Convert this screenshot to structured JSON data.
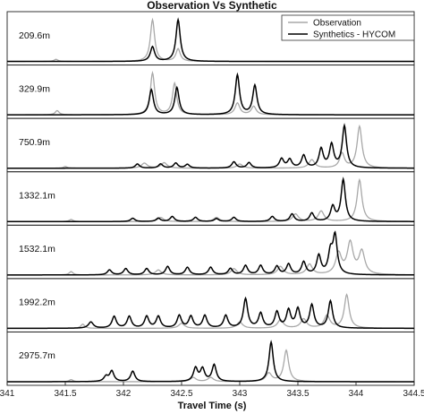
{
  "chart_data": {
    "type": "line",
    "title": "Observation Vs Synthetic",
    "xlabel": "Travel Time (s)",
    "ylabel": "",
    "xlim": [
      341,
      344.5
    ],
    "x_ticks": [
      "341",
      "341.5",
      "342",
      "342.5",
      "343",
      "343.5",
      "344",
      "344.5"
    ],
    "grid": false,
    "legend": {
      "position": "top-right",
      "entries": [
        {
          "name": "Observation",
          "color": "#a8a8a8"
        },
        {
          "name": "Synthetics - HYCOM",
          "color": "#000000"
        }
      ]
    },
    "panels": [
      {
        "label": "209.6m",
        "observation": [
          [
            342.25,
            1.0,
            0.022
          ],
          [
            342.47,
            0.3,
            0.022
          ],
          [
            341.42,
            0.05,
            0.02
          ]
        ],
        "synthetic": [
          [
            342.47,
            1.0,
            0.022
          ],
          [
            342.25,
            0.35,
            0.022
          ]
        ]
      },
      {
        "label": "329.9m",
        "observation": [
          [
            342.25,
            1.0,
            0.022
          ],
          [
            342.44,
            0.75,
            0.022
          ],
          [
            342.98,
            0.28,
            0.025
          ],
          [
            343.12,
            0.2,
            0.025
          ],
          [
            341.43,
            0.1,
            0.02
          ]
        ],
        "synthetic": [
          [
            342.46,
            0.65,
            0.022
          ],
          [
            342.24,
            0.6,
            0.022
          ],
          [
            342.98,
            0.95,
            0.022
          ],
          [
            343.13,
            0.7,
            0.022
          ]
        ]
      },
      {
        "label": "750.9m",
        "observation": [
          [
            344.03,
            1.0,
            0.025
          ],
          [
            343.88,
            0.35,
            0.025
          ],
          [
            343.62,
            0.2,
            0.03
          ],
          [
            342.35,
            0.13,
            0.03
          ],
          [
            342.18,
            0.12,
            0.03
          ],
          [
            343.0,
            0.1,
            0.03
          ],
          [
            341.5,
            0.04,
            0.02
          ]
        ],
        "synthetic": [
          [
            343.9,
            1.0,
            0.022
          ],
          [
            343.79,
            0.55,
            0.022
          ],
          [
            343.7,
            0.45,
            0.022
          ],
          [
            343.55,
            0.3,
            0.022
          ],
          [
            343.43,
            0.2,
            0.022
          ],
          [
            343.36,
            0.22,
            0.022
          ],
          [
            342.95,
            0.15,
            0.022
          ],
          [
            343.08,
            0.13,
            0.022
          ],
          [
            342.45,
            0.12,
            0.022
          ],
          [
            342.32,
            0.1,
            0.022
          ],
          [
            342.12,
            0.1,
            0.022
          ],
          [
            342.55,
            0.09,
            0.022
          ]
        ]
      },
      {
        "label": "1332.1m",
        "observation": [
          [
            344.03,
            1.0,
            0.025
          ],
          [
            343.7,
            0.25,
            0.03
          ],
          [
            343.48,
            0.18,
            0.03
          ],
          [
            342.8,
            0.1,
            0.03
          ],
          [
            342.32,
            0.1,
            0.03
          ],
          [
            341.55,
            0.05,
            0.02
          ]
        ],
        "synthetic": [
          [
            343.89,
            1.0,
            0.022
          ],
          [
            343.8,
            0.35,
            0.022
          ],
          [
            343.62,
            0.2,
            0.022
          ],
          [
            343.45,
            0.18,
            0.022
          ],
          [
            343.28,
            0.12,
            0.022
          ],
          [
            342.95,
            0.1,
            0.022
          ],
          [
            342.62,
            0.1,
            0.022
          ],
          [
            342.42,
            0.12,
            0.022
          ],
          [
            342.08,
            0.08,
            0.022
          ],
          [
            342.3,
            0.08,
            0.022
          ],
          [
            342.8,
            0.07,
            0.022
          ]
        ]
      },
      {
        "label": "1532.1m",
        "observation": [
          [
            343.95,
            0.75,
            0.03
          ],
          [
            344.05,
            0.55,
            0.03
          ],
          [
            343.85,
            0.5,
            0.03
          ],
          [
            343.6,
            0.25,
            0.03
          ],
          [
            343.35,
            0.2,
            0.03
          ],
          [
            342.95,
            0.15,
            0.03
          ],
          [
            342.3,
            0.12,
            0.03
          ],
          [
            341.55,
            0.08,
            0.02
          ]
        ],
        "synthetic": [
          [
            343.82,
            0.9,
            0.022
          ],
          [
            343.78,
            0.5,
            0.022
          ],
          [
            343.68,
            0.45,
            0.022
          ],
          [
            343.55,
            0.3,
            0.022
          ],
          [
            343.42,
            0.25,
            0.022
          ],
          [
            343.32,
            0.2,
            0.022
          ],
          [
            343.18,
            0.22,
            0.022
          ],
          [
            343.05,
            0.22,
            0.022
          ],
          [
            342.92,
            0.15,
            0.022
          ],
          [
            342.75,
            0.18,
            0.022
          ],
          [
            342.55,
            0.18,
            0.022
          ],
          [
            342.38,
            0.2,
            0.022
          ],
          [
            342.2,
            0.15,
            0.022
          ],
          [
            342.02,
            0.15,
            0.022
          ],
          [
            341.88,
            0.12,
            0.022
          ]
        ]
      },
      {
        "label": "1992.2m",
        "observation": [
          [
            343.92,
            0.8,
            0.025
          ],
          [
            343.75,
            0.3,
            0.03
          ],
          [
            343.55,
            0.22,
            0.03
          ],
          [
            343.35,
            0.2,
            0.03
          ],
          [
            343.0,
            0.15,
            0.03
          ],
          [
            342.5,
            0.12,
            0.03
          ],
          [
            341.65,
            0.1,
            0.02
          ]
        ],
        "synthetic": [
          [
            343.78,
            0.65,
            0.022
          ],
          [
            343.62,
            0.55,
            0.022
          ],
          [
            343.5,
            0.45,
            0.022
          ],
          [
            343.42,
            0.42,
            0.022
          ],
          [
            343.32,
            0.38,
            0.022
          ],
          [
            343.18,
            0.35,
            0.022
          ],
          [
            343.05,
            0.7,
            0.022
          ],
          [
            342.88,
            0.3,
            0.022
          ],
          [
            342.7,
            0.3,
            0.022
          ],
          [
            342.58,
            0.28,
            0.022
          ],
          [
            342.48,
            0.3,
            0.022
          ],
          [
            342.3,
            0.28,
            0.022
          ],
          [
            342.2,
            0.28,
            0.022
          ],
          [
            342.05,
            0.28,
            0.022
          ],
          [
            341.92,
            0.28,
            0.022
          ],
          [
            341.72,
            0.15,
            0.025
          ]
        ]
      },
      {
        "label": "2975.7m",
        "observation": [
          [
            343.4,
            0.75,
            0.025
          ],
          [
            343.25,
            0.2,
            0.03
          ],
          [
            342.75,
            0.1,
            0.03
          ],
          [
            342.6,
            0.1,
            0.03
          ],
          [
            341.55,
            0.05,
            0.02
          ]
        ],
        "synthetic": [
          [
            343.27,
            0.95,
            0.022
          ],
          [
            342.78,
            0.4,
            0.022
          ],
          [
            342.68,
            0.3,
            0.022
          ],
          [
            342.62,
            0.32,
            0.022
          ],
          [
            342.08,
            0.25,
            0.022
          ],
          [
            341.9,
            0.25,
            0.022
          ],
          [
            341.85,
            0.12,
            0.022
          ]
        ]
      }
    ]
  }
}
